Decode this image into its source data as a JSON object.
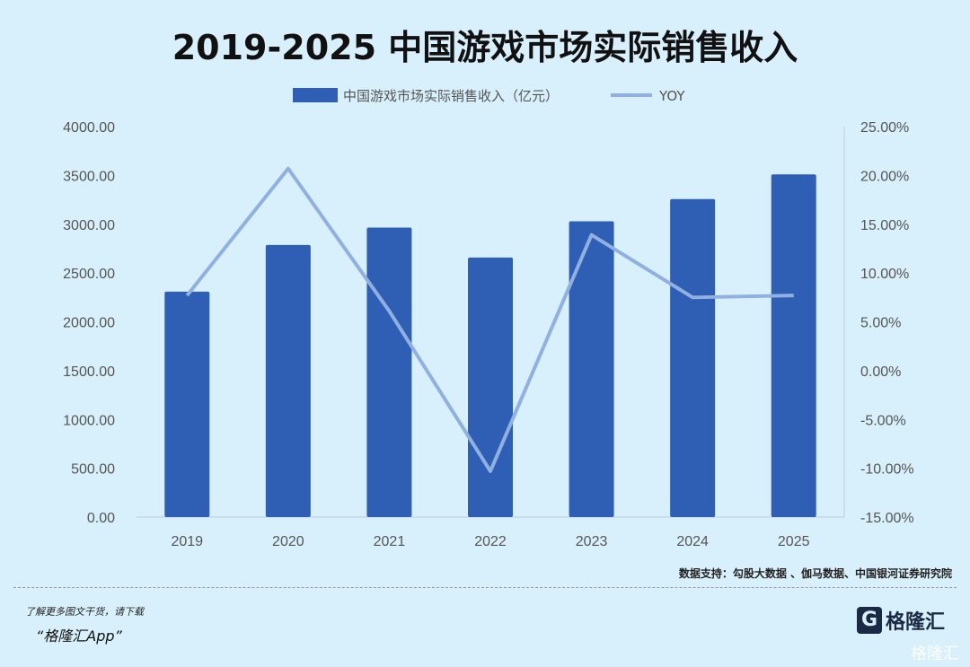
{
  "chart_data": {
    "type": "bar+line",
    "title": "2019-2025 中国游戏市场实际销售收入",
    "categories": [
      "2019",
      "2020",
      "2021",
      "2022",
      "2023",
      "2024",
      "2025"
    ],
    "series": [
      {
        "name": "中国游戏市场实际销售收入（亿元）",
        "type": "bar",
        "axis": "left",
        "color": "#2e5fb4",
        "values": [
          2308.8,
          2786.9,
          2965.1,
          2658.8,
          3029.6,
          3257.8,
          3510.0
        ]
      },
      {
        "name": "YOY",
        "type": "line",
        "axis": "right",
        "color": "#8fb0e0",
        "values": [
          7.7,
          20.7,
          6.1,
          -10.3,
          13.9,
          7.5,
          7.7
        ]
      }
    ],
    "left_axis": {
      "ylim": [
        0,
        4000
      ],
      "ticks": [
        "0.00",
        "500.00",
        "1000.00",
        "1500.00",
        "2000.00",
        "2500.00",
        "3000.00",
        "3500.00",
        "4000.00"
      ]
    },
    "right_axis": {
      "ylim": [
        -15,
        25
      ],
      "unit": "%",
      "ticks": [
        "-15.00%",
        "-10.00%",
        "-5.00%",
        "0.00%",
        "5.00%",
        "10.00%",
        "15.00%",
        "20.00%",
        "25.00%"
      ]
    },
    "grid": false,
    "legend_position": "top"
  },
  "footer": {
    "source": "数据支持：勾股大数据 、伽马数据、中国银河证券研究院",
    "promo_line1": "了解更多图文干货，请下载",
    "promo_line2": "“格隆汇App”",
    "logo_text": "格隆汇",
    "watermark": "格隆汇"
  }
}
